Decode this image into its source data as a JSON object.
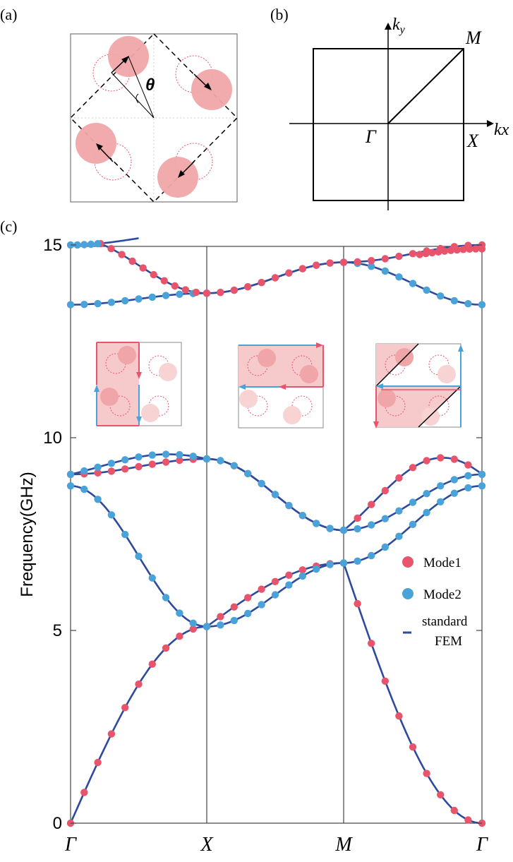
{
  "panels": {
    "a": "(a)",
    "b": "(b)",
    "c": "(c)"
  },
  "panel_a": {
    "angle_symbol": "θ"
  },
  "panel_b": {
    "ky_base": "k",
    "ky_sub": "y",
    "kx": "kx",
    "gamma": "Γ",
    "x_point": "X",
    "m_point": "M"
  },
  "chart_data": {
    "type": "line",
    "title": "",
    "xlabel": "",
    "ylabel": "Frequency(GHz)",
    "ylim": [
      -0.3,
      15.5
    ],
    "yticks": [
      0,
      5,
      10,
      15
    ],
    "xticks": [
      "Γ",
      "X",
      "M",
      "Γ"
    ],
    "grid": false,
    "legend": {
      "position": "right",
      "entries": [
        "Mode1",
        "Mode2",
        "standard",
        "FEM"
      ]
    },
    "colors": {
      "mode1": "#e8546c",
      "mode2": "#4aa3d8",
      "fem": "#2e4a9e"
    },
    "bands": [
      {
        "name": "band1",
        "values": [
          0.0,
          5.1,
          6.75,
          0.0
        ],
        "shape": "sin",
        "mode": "mode1"
      },
      {
        "name": "band2",
        "values": [
          8.75,
          5.1,
          6.75,
          8.75
        ],
        "shape": "cos",
        "mode": "mode2"
      },
      {
        "name": "band3",
        "values": [
          9.05,
          9.45,
          7.6,
          9.05
        ],
        "shape": "cos",
        "mode": "mode1",
        "bumps": [
          0.0,
          0.0,
          0.9
        ]
      },
      {
        "name": "band4",
        "values": [
          9.05,
          9.45,
          7.6,
          9.05
        ],
        "shape": "cos",
        "mode": "mode2",
        "bumps": [
          0.25,
          0.0,
          0.0
        ]
      },
      {
        "name": "band5",
        "values": [
          13.45,
          13.75,
          14.55,
          13.45
        ],
        "shape": "cos",
        "mode": "mode2"
      },
      {
        "name": "band6",
        "values": [
          15.2,
          13.75,
          14.55,
          15.0
        ],
        "shape": "cos",
        "mode": "mode1",
        "start_t": 0.22
      },
      {
        "name": "band7",
        "values": [
          15.0,
          15.35,
          14.55,
          15.0
        ],
        "shape": "cos",
        "mode": "mode2",
        "seg": [
          0,
          0.5
        ]
      },
      {
        "name": "band8",
        "values": [
          15.2,
          13.75,
          14.55,
          14.9
        ],
        "shape": "cos",
        "mode": "mode1",
        "seg": [
          2,
          0
        ]
      }
    ]
  }
}
